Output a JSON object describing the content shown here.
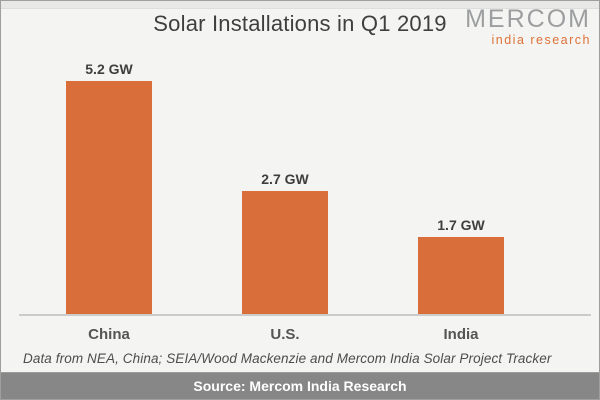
{
  "header": {
    "title": "Solar Installations in Q1 2019",
    "logo": {
      "brand": "MERCOM",
      "sub": "india research",
      "brand_color": "#9d9ea0",
      "sub_color": "#dd7238"
    }
  },
  "chart_data": {
    "type": "bar",
    "title": "Solar Installations in Q1 2019",
    "categories": [
      "China",
      "U.S.",
      "India"
    ],
    "values": [
      5.2,
      2.7,
      1.7
    ],
    "value_labels": [
      "5.2 GW",
      "2.7 GW",
      "1.7 GW"
    ],
    "unit": "GW",
    "xlabel": "",
    "ylabel": "",
    "ylim": [
      0,
      5.5
    ],
    "grid": false,
    "legend": false,
    "bar_color": "#d96e3a",
    "axis_line_color": "#cbcbc9",
    "background_color": "#f4f4f2"
  },
  "footnote": "Data from NEA, China; SEIA/Wood Mackenzie and Mercom India Solar Project Tracker",
  "footer": {
    "source": "Source: Mercom India Research",
    "bar_color": "#878787"
  }
}
